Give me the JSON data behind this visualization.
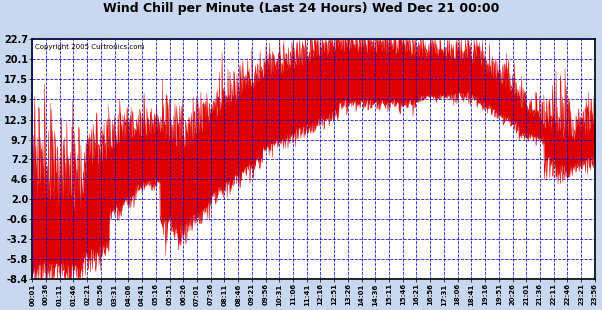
{
  "title": "Wind Chill per Minute (Last 24 Hours) Wed Dec 21 00:00",
  "copyright": "Copyright 2005 Curtronics.com",
  "yticks": [
    22.7,
    20.1,
    17.5,
    14.9,
    12.3,
    9.7,
    7.2,
    4.6,
    2.0,
    -0.6,
    -3.2,
    -5.8,
    -8.4
  ],
  "ymin": -8.4,
  "ymax": 22.7,
  "outer_bg": "#c8d8f0",
  "plot_bg": "#ffffff",
  "line_color": "#dd0000",
  "grid_color": "#0000cc",
  "title_color": "#000000",
  "border_color": "#000000",
  "xtick_labels": [
    "00:01",
    "00:36",
    "01:11",
    "01:46",
    "02:21",
    "02:56",
    "03:31",
    "04:06",
    "04:41",
    "05:16",
    "05:51",
    "06:26",
    "07:01",
    "07:36",
    "08:11",
    "08:46",
    "09:21",
    "09:56",
    "10:31",
    "11:06",
    "11:41",
    "12:16",
    "12:51",
    "13:26",
    "14:01",
    "14:36",
    "15:11",
    "15:46",
    "16:21",
    "16:56",
    "17:31",
    "18:06",
    "18:41",
    "19:16",
    "19:51",
    "20:26",
    "21:01",
    "21:36",
    "22:11",
    "22:46",
    "23:21",
    "23:56"
  ],
  "num_points": 1440,
  "segments": [
    {
      "hours": 2,
      "mean_s": 2.0,
      "mean_e": 0.0,
      "noise": 5.5,
      "base_s": -6.0,
      "base_e": -6.0
    },
    {
      "hours": 1,
      "mean_s": 4.0,
      "mean_e": 7.0,
      "noise": 4.0,
      "base_s": -5.0,
      "base_e": -3.0
    },
    {
      "hours": 1,
      "mean_s": 8.0,
      "mean_e": 10.0,
      "noise": 2.5,
      "base_s": 1.0,
      "base_e": 3.0
    },
    {
      "hours": 1,
      "mean_s": 10.0,
      "mean_e": 10.5,
      "noise": 2.0,
      "base_s": 4.0,
      "base_e": 5.0
    },
    {
      "hours": 1,
      "mean_s": 10.0,
      "mean_e": 8.0,
      "noise": 3.5,
      "base_s": 0.0,
      "base_e": -1.0
    },
    {
      "hours": 1,
      "mean_s": 8.0,
      "mean_e": 12.0,
      "noise": 3.0,
      "base_s": -0.5,
      "base_e": 2.0
    },
    {
      "hours": 2,
      "mean_s": 12.0,
      "mean_e": 17.0,
      "noise": 2.5,
      "base_s": 3.0,
      "base_e": 8.0
    },
    {
      "hours": 3,
      "mean_s": 17.0,
      "mean_e": 21.0,
      "noise": 2.5,
      "base_s": 9.0,
      "base_e": 14.0
    },
    {
      "hours": 3,
      "mean_s": 21.0,
      "mean_e": 20.5,
      "noise": 2.0,
      "base_s": 15.0,
      "base_e": 15.0
    },
    {
      "hours": 2,
      "mean_s": 20.5,
      "mean_e": 20.0,
      "noise": 1.5,
      "base_s": 15.5,
      "base_e": 16.0
    },
    {
      "hours": 2,
      "mean_s": 20.0,
      "mean_e": 15.0,
      "noise": 2.0,
      "base_s": 16.0,
      "base_e": 12.0
    },
    {
      "hours": 1,
      "mean_s": 14.0,
      "mean_e": 11.5,
      "noise": 1.5,
      "base_s": 11.0,
      "base_e": 10.0
    },
    {
      "hours": 1,
      "mean_s": 11.0,
      "mean_e": 9.5,
      "noise": 3.5,
      "base_s": 8.0,
      "base_e": 6.0
    },
    {
      "hours": 1,
      "mean_s": 9.5,
      "mean_e": 10.0,
      "noise": 2.5,
      "base_s": 6.5,
      "base_e": 8.0
    }
  ]
}
